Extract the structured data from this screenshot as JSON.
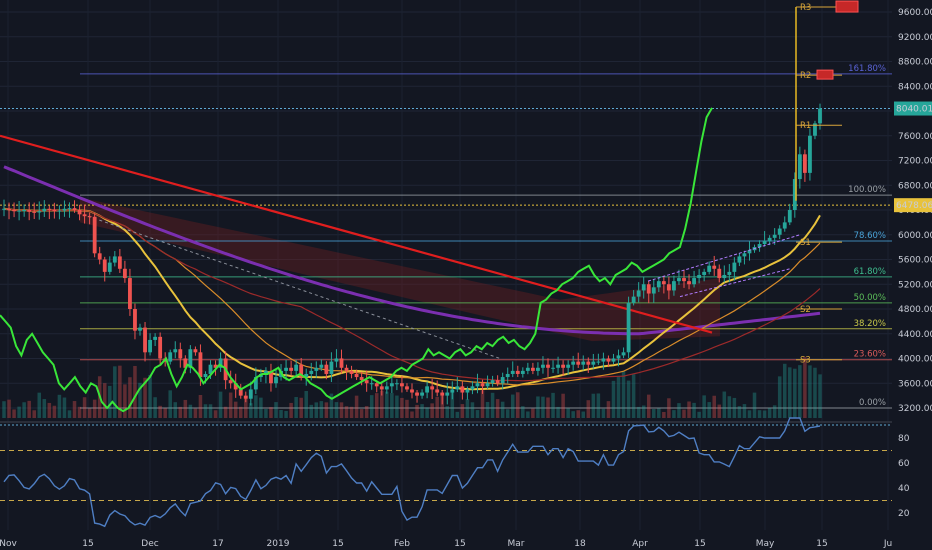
{
  "chart_data": {
    "type": "candlestick",
    "price_axis": {
      "range": [
        3100,
        9800
      ],
      "ticks": [
        9600,
        9200,
        8800,
        8400,
        8000,
        7600,
        7200,
        6800,
        6400,
        6000,
        5600,
        5200,
        4800,
        4400,
        4000,
        3600,
        3200
      ],
      "tick_labels": [
        "9600.00",
        "9200.00",
        "8800.00",
        "8400.00",
        "8000.00",
        "7600.00",
        "7200.00",
        "6800.00",
        "6400.00",
        "6000.00",
        "5600.00",
        "5200.00",
        "4800.00",
        "4400.00",
        "4000.00",
        "3600.00",
        "3200.00"
      ],
      "current_price": 8040,
      "current_price_label": "8040.01",
      "highlight_price": 6478,
      "highlight_label": "6478.06"
    },
    "rsi_axis": {
      "range": [
        5,
        100
      ],
      "ticks": [
        80,
        60,
        40,
        20
      ],
      "tick_labels": [
        "80",
        "60",
        "40",
        "20"
      ],
      "bands": [
        70,
        30
      ]
    },
    "time_axis": {
      "labels": [
        "Nov",
        "15",
        "Dec",
        "17",
        "2019",
        "15",
        "Feb",
        "15",
        "Mar",
        "18",
        "Apr",
        "15",
        "May",
        "15",
        "Ju"
      ]
    },
    "fib_levels": [
      {
        "label": "161.80%",
        "price": 8600,
        "color": "#5a63d6"
      },
      {
        "label": "100.00%",
        "price": 6640,
        "color": "#9aa0a6"
      },
      {
        "label": "78.60%",
        "price": 5900,
        "color": "#4aa3d8"
      },
      {
        "label": "61.80%",
        "price": 5320,
        "color": "#3fbf8f"
      },
      {
        "label": "50.00%",
        "price": 4900,
        "color": "#5cbf5a"
      },
      {
        "label": "38.20%",
        "price": 4480,
        "color": "#c9c94a"
      },
      {
        "label": "23.60%",
        "price": 3980,
        "color": "#d95b5b"
      },
      {
        "label": "0.00%",
        "price": 3200,
        "color": "#9aa0a6"
      }
    ],
    "pivots": [
      {
        "label": "R3",
        "price": 9680
      },
      {
        "label": "R2",
        "price": 8580
      },
      {
        "label": "R1",
        "price": 7770
      },
      {
        "label": "S1",
        "price": 5880
      },
      {
        "label": "S2",
        "price": 4800
      },
      {
        "label": "S3",
        "price": 3980
      }
    ],
    "colors": {
      "up": "#26a69a",
      "down": "#ef5350",
      "green_overlay": "#39e639",
      "rsi": "#4f7fc4",
      "trendline": "#e01e1e",
      "purple_ma": "#7b2fb0",
      "yellow_ma": "#e8c23c",
      "orange_ma": "#d98c2a",
      "ichimoku_cloud": "#7a1f1f"
    },
    "price_closes": [
      6420,
      6400,
      6380,
      6390,
      6400,
      6370,
      6360,
      6380,
      6420,
      6410,
      6380,
      6390,
      6420,
      6430,
      6400,
      6330,
      6300,
      6290,
      5700,
      5600,
      5400,
      5550,
      5650,
      5450,
      5300,
      4800,
      4450,
      4500,
      4100,
      4300,
      4350,
      4000,
      3950,
      4100,
      4150,
      4000,
      3850,
      4150,
      4100,
      3700,
      3750,
      3900,
      3850,
      4000,
      3650,
      3600,
      3500,
      3400,
      3350,
      3500,
      3700,
      3750,
      3800,
      3600,
      3700,
      3800,
      3850,
      3800,
      3900,
      3700,
      3750,
      3800,
      3850,
      3900,
      3750,
      3950,
      4000,
      3850,
      3800,
      3750,
      3700,
      3650,
      3600,
      3600,
      3550,
      3500,
      3550,
      3600,
      3600,
      3550,
      3500,
      3450,
      3400,
      3450,
      3550,
      3500,
      3450,
      3400,
      3450,
      3500,
      3550,
      3450,
      3500,
      3550,
      3600,
      3550,
      3600,
      3650,
      3600,
      3700,
      3750,
      3800,
      3750,
      3800,
      3850,
      3800,
      3850,
      3900,
      3850,
      3850,
      3900,
      3850,
      3900,
      3950,
      3900,
      3950,
      3900,
      3950,
      3950,
      4000,
      3950,
      4000,
      4050,
      4100,
      4900,
      5000,
      5100,
      5200,
      5050,
      5150,
      5250,
      5200,
      5100,
      5250,
      5300,
      5250,
      5200,
      5300,
      5350,
      5400,
      5500,
      5450,
      5300,
      5350,
      5400,
      5550,
      5650,
      5700,
      5750,
      5800,
      5850,
      5900,
      5950,
      6000,
      6100,
      6200,
      6400,
      6900,
      7300,
      7000,
      7600,
      7800,
      8040
    ],
    "green_overlay_closes": [
      4700,
      4600,
      4500,
      4200,
      4050,
      4300,
      4400,
      4250,
      4100,
      4000,
      3900,
      3600,
      3500,
      3600,
      3700,
      3550,
      3450,
      3600,
      3550,
      3300,
      3200,
      3300,
      3200,
      3150,
      3200,
      3350,
      3500,
      3600,
      3700,
      3850,
      3900,
      4000,
      3750,
      3550,
      3700,
      3900,
      3850,
      3750,
      3600,
      3700,
      3800,
      3900,
      3850,
      3700,
      3600,
      3500,
      3550,
      3600,
      3700,
      3750,
      3750,
      3800,
      3850,
      3700,
      3650,
      3700,
      3750,
      3700,
      3600,
      3550,
      3500,
      3400,
      3350,
      3400,
      3450,
      3500,
      3550,
      3600,
      3650,
      3700,
      3650,
      3600,
      3650,
      3700,
      3800,
      3850,
      3800,
      3900,
      3950,
      4000,
      4150,
      4050,
      4100,
      4050,
      4000,
      4100,
      4150,
      4050,
      4100,
      4200,
      4150,
      4250,
      4200,
      4300,
      4350,
      4250,
      4300,
      4200,
      4150,
      4250,
      4400,
      4900,
      4950,
      5050,
      5100,
      5200,
      5250,
      5300,
      5400,
      5450,
      5500,
      5350,
      5250,
      5300,
      5200,
      5350,
      5400,
      5450,
      5550,
      5500,
      5400,
      5450,
      5500,
      5550,
      5600,
      5700,
      5750,
      5800,
      6100,
      6500,
      7000,
      7500,
      7900,
      8050
    ]
  }
}
